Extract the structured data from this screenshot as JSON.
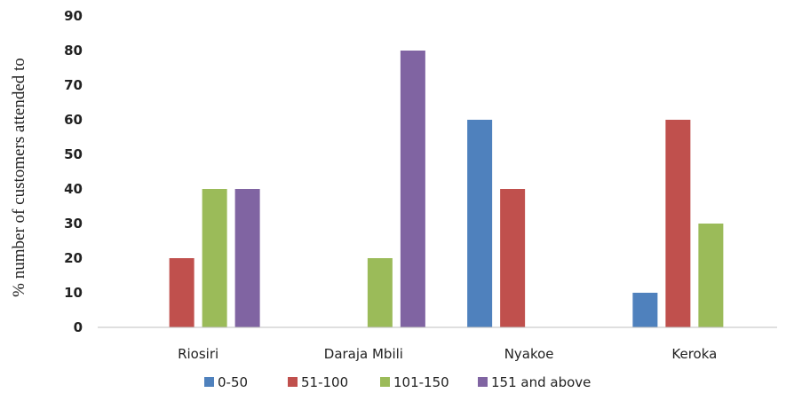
{
  "chart_data": {
    "type": "bar",
    "title": "",
    "xlabel": "",
    "ylabel": "% number of customers attended to",
    "ylim": [
      0,
      90
    ],
    "yticks": [
      0,
      10,
      20,
      30,
      40,
      50,
      60,
      70,
      80,
      90
    ],
    "grid": false,
    "legend_position": "bottom",
    "categories": [
      "Riosiri",
      "Daraja Mbili",
      "Nyakoe",
      "Keroka"
    ],
    "series": [
      {
        "name": "0-50",
        "color": "#4f81bd",
        "values": [
          0,
          0,
          60,
          10
        ]
      },
      {
        "name": "51-100",
        "color": "#c0504d",
        "values": [
          20,
          0,
          40,
          60
        ]
      },
      {
        "name": "101-150",
        "color": "#9bbb59",
        "values": [
          40,
          20,
          0,
          30
        ]
      },
      {
        "name": "151 and above",
        "color": "#8064a2",
        "values": [
          40,
          80,
          0,
          0
        ]
      }
    ]
  }
}
